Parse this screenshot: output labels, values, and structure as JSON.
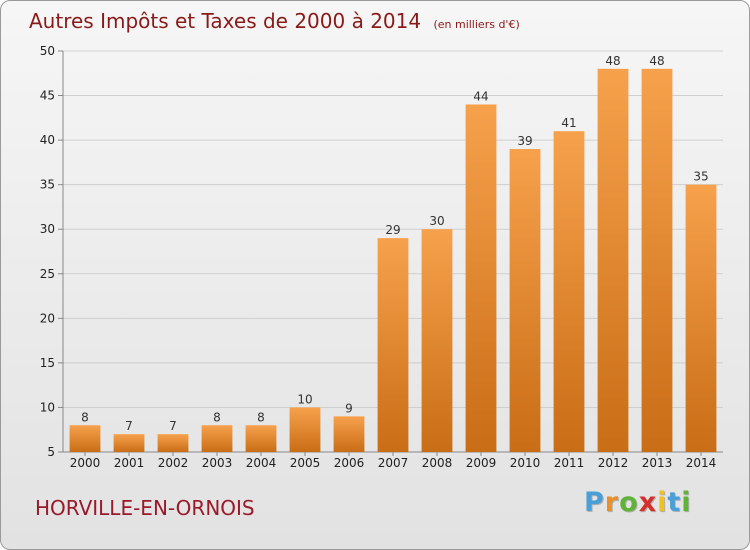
{
  "title": {
    "main": "Autres Impôts et Taxes de 2000 à 2014",
    "unit": "(en milliers d'€)"
  },
  "municipality": "HORVILLE-EN-ORNOIS",
  "logo": {
    "letters": [
      "P",
      "r",
      "o",
      "x",
      "i",
      "t",
      "i"
    ],
    "colors": [
      "#4a9fd8",
      "#e8902a",
      "#5fb336",
      "#d4312c",
      "#f2c21a",
      "#4a9fd8",
      "#5fb336"
    ]
  },
  "chart_data": {
    "type": "bar",
    "title": "Autres Impôts et Taxes de 2000 à 2014",
    "subtitle": "(en milliers d'€)",
    "categories": [
      "2000",
      "2001",
      "2002",
      "2003",
      "2004",
      "2005",
      "2006",
      "2007",
      "2008",
      "2009",
      "2010",
      "2011",
      "2012",
      "2013",
      "2014"
    ],
    "values": [
      8,
      7,
      7,
      8,
      8,
      10,
      9,
      29,
      30,
      44,
      39,
      41,
      48,
      48,
      35
    ],
    "ylim": [
      5,
      50
    ],
    "yticks": [
      5,
      10,
      15,
      20,
      25,
      30,
      35,
      40,
      45,
      50
    ],
    "grid": true,
    "bar_color_top": "#f7a14c",
    "bar_color_bottom": "#c96d16"
  }
}
